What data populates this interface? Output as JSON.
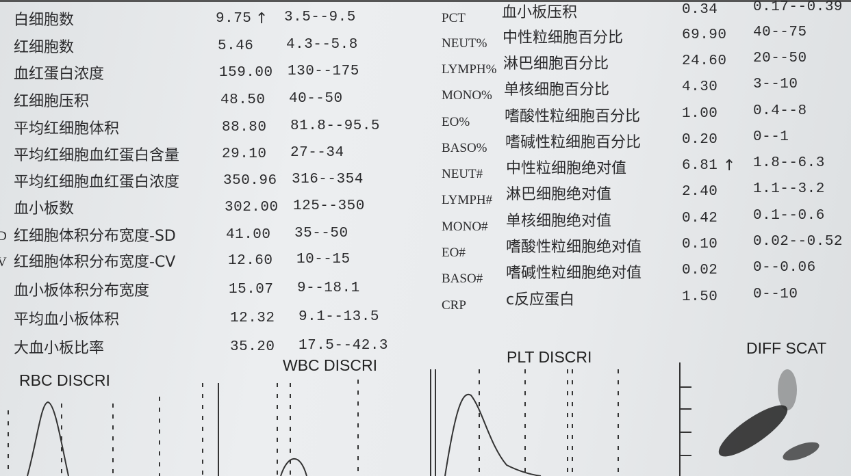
{
  "left_rows": [
    {
      "name": "白细胞数",
      "value": "9.75",
      "flag": "↑",
      "range": "3.5--9.5"
    },
    {
      "name": "红细胞数",
      "value": "5.46",
      "flag": "",
      "range": "4.3--5.8"
    },
    {
      "name": "血红蛋白浓度",
      "value": "159.00",
      "flag": "",
      "range": "130--175"
    },
    {
      "name": "红细胞压积",
      "value": "48.50",
      "flag": "",
      "range": "40--50"
    },
    {
      "name": "平均红细胞体积",
      "value": "88.80",
      "flag": "",
      "range": "81.8--95.5"
    },
    {
      "name": "平均红细胞血红蛋白含量",
      "value": "29.10",
      "flag": "",
      "range": "27--34"
    },
    {
      "name": "平均红细胞血红蛋白浓度",
      "value": "350.96",
      "flag": "",
      "range": "316--354"
    },
    {
      "name": "血小板数",
      "value": "302.00",
      "flag": "",
      "range": "125--350"
    },
    {
      "code": "D",
      "name": "红细胞体积分布宽度-SD",
      "value": "41.00",
      "flag": "",
      "range": "35--50"
    },
    {
      "code": "V",
      "name": "红细胞体积分布宽度-CV",
      "value": "12.60",
      "flag": "",
      "range": "10--15"
    },
    {
      "name": "血小板体积分布宽度",
      "value": "15.07",
      "flag": "",
      "range": "9--18.1"
    },
    {
      "name": "平均血小板体积",
      "value": "12.32",
      "flag": "",
      "range": "9.1--13.5"
    },
    {
      "name": "大血小板比率",
      "value": "35.20",
      "flag": "",
      "range": "17.5--42.3"
    }
  ],
  "right_rows": [
    {
      "code": "PCT",
      "name": "血小板压积",
      "value": "0.34",
      "flag": "",
      "range": "0.17--0.39"
    },
    {
      "code": "NEUT%",
      "name": "中性粒细胞百分比",
      "value": "69.90",
      "flag": "",
      "range": "40--75"
    },
    {
      "code": "LYMPH%",
      "name": "淋巴细胞百分比",
      "value": "24.60",
      "flag": "",
      "range": "20--50"
    },
    {
      "code": "MONO%",
      "name": "单核细胞百分比",
      "value": "4.30",
      "flag": "",
      "range": "3--10"
    },
    {
      "code": "EO%",
      "name": "嗜酸性粒细胞百分比",
      "value": "1.00",
      "flag": "",
      "range": "0.4--8"
    },
    {
      "code": "BASO%",
      "name": "嗜碱性粒细胞百分比",
      "value": "0.20",
      "flag": "",
      "range": "0--1"
    },
    {
      "code": "NEUT#",
      "name": "中性粒细胞绝对值",
      "value": "6.81",
      "flag": "↑",
      "range": "1.8--6.3"
    },
    {
      "code": "LYMPH#",
      "name": "淋巴细胞绝对值",
      "value": "2.40",
      "flag": "",
      "range": "1.1--3.2"
    },
    {
      "code": "MONO#",
      "name": "单核细胞绝对值",
      "value": "0.42",
      "flag": "",
      "range": "0.1--0.6"
    },
    {
      "code": "EO#",
      "name": "嗜酸性粒细胞绝对值",
      "value": "0.10",
      "flag": "",
      "range": "0.02--0.52"
    },
    {
      "code": "BASO#",
      "name": "嗜碱性粒细胞绝对值",
      "value": "0.02",
      "flag": "",
      "range": "0--0.06"
    },
    {
      "code": "CRP",
      "name": "c反应蛋白",
      "value": "1.50",
      "flag": "",
      "range": "0--10"
    }
  ],
  "graphs": {
    "rbc": "RBC DISCRI",
    "wbc": "WBC DISCRI",
    "plt": "PLT DISCRI",
    "diff": "DIFF SCAT"
  }
}
